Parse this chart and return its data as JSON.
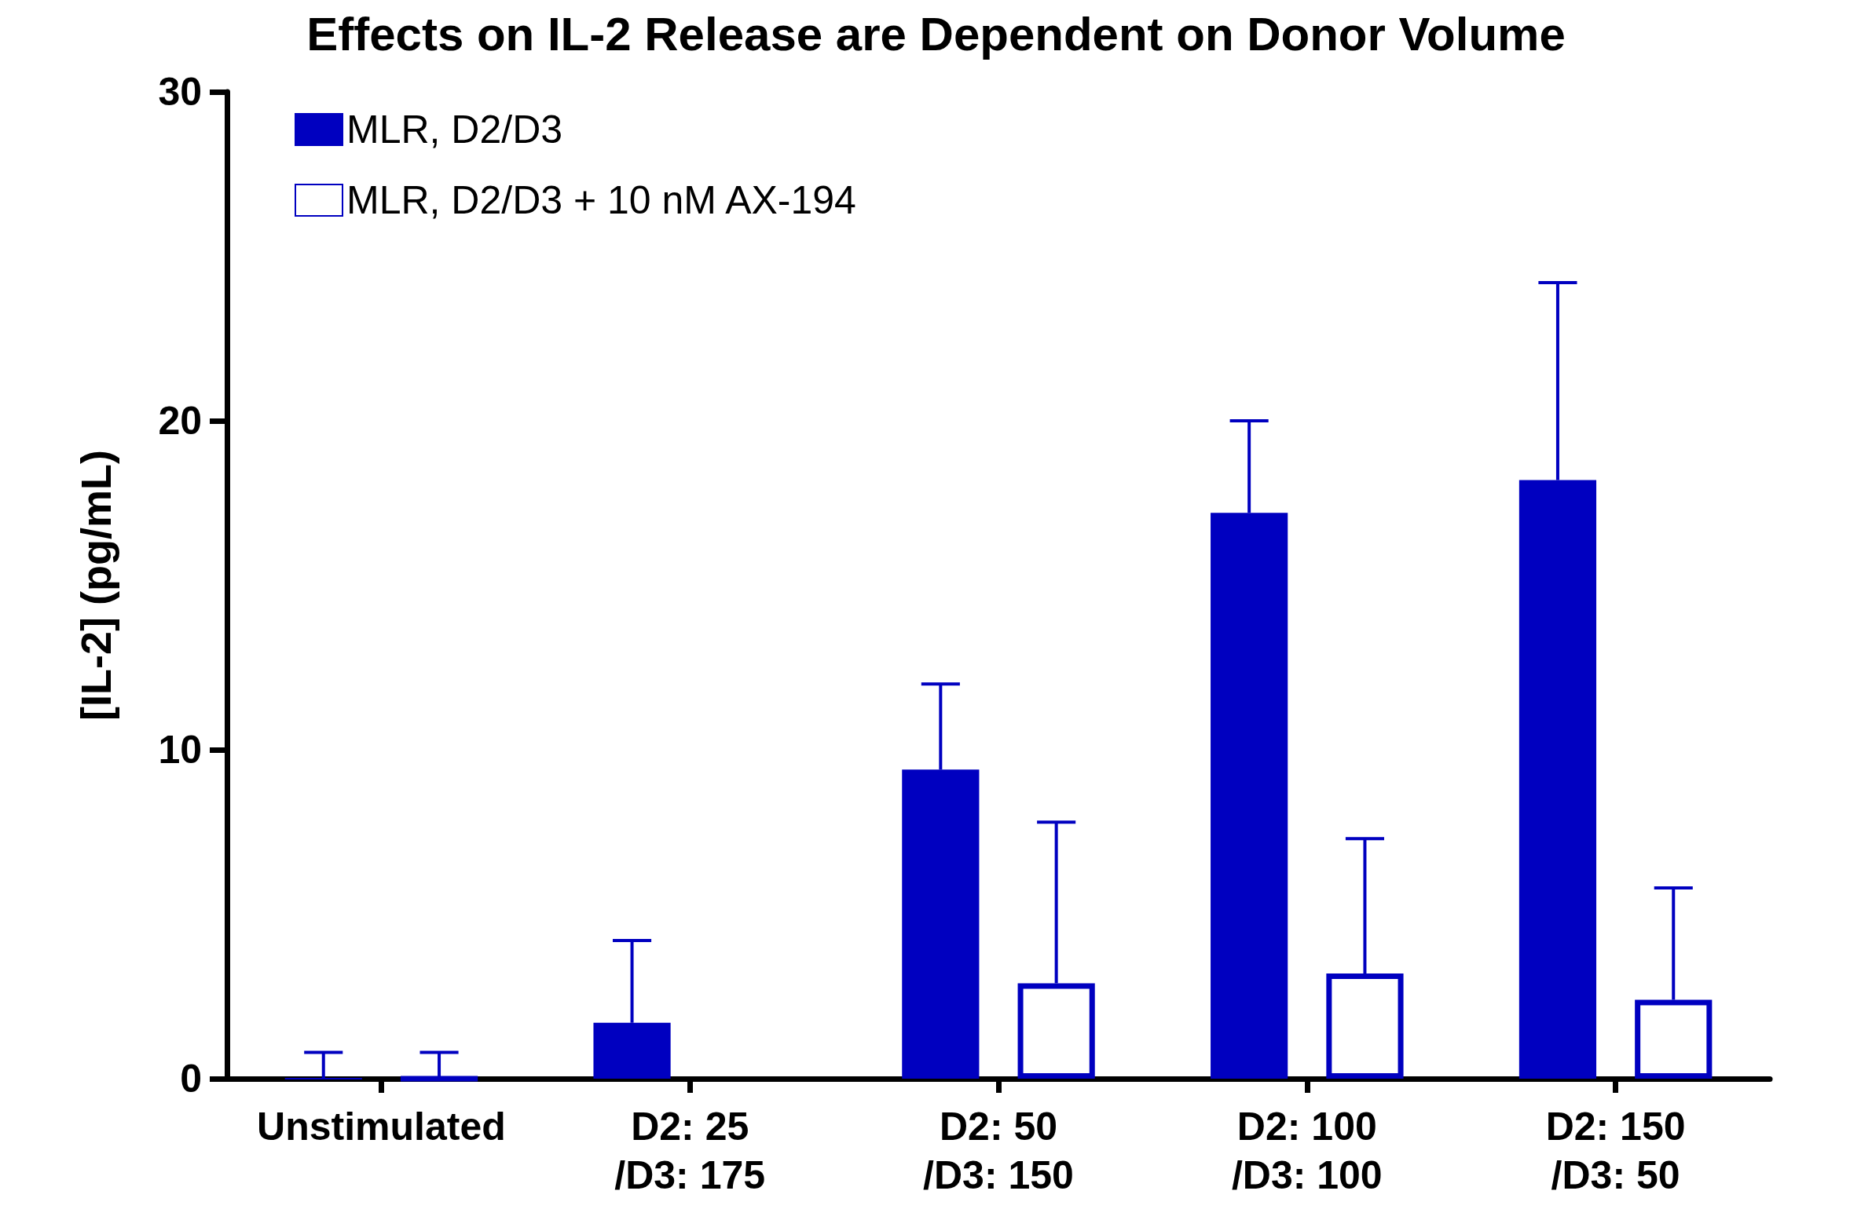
{
  "chart_data": {
    "type": "bar",
    "title": "Effects on IL-2 Release are Dependent on Donor Volume",
    "ylabel": "[IL-2] (pg/mL)",
    "categories": [
      "Unstimulated",
      "D2: 25\n/D3: 175",
      "D2: 50\n/D3: 150",
      "D2: 100\n/D3: 100",
      "D2: 150\n/D3: 50"
    ],
    "series": [
      {
        "name": "MLR, D2/D3",
        "color": "#0000c0",
        "values": [
          0,
          1.7,
          9.4,
          17.2,
          18.2
        ],
        "errors": [
          [
            0,
            0.8
          ],
          [
            1.7,
            4.2
          ],
          [
            9.4,
            12.0
          ],
          [
            17.2,
            20.0
          ],
          [
            18.2,
            24.2
          ]
        ]
      },
      {
        "name": "MLR, D2/D3 + 10 nM AX-194",
        "color": "#0000c0",
        "values": [
          0,
          null,
          2.9,
          3.2,
          2.4
        ],
        "errors": [
          [
            0,
            0.8
          ],
          null,
          [
            2.9,
            7.8
          ],
          [
            3.2,
            7.3
          ],
          [
            2.4,
            5.8
          ]
        ]
      }
    ],
    "ylim": [
      0,
      30
    ],
    "yticks": [
      0,
      10,
      20,
      30
    ],
    "grid": false,
    "legend": "top left"
  }
}
